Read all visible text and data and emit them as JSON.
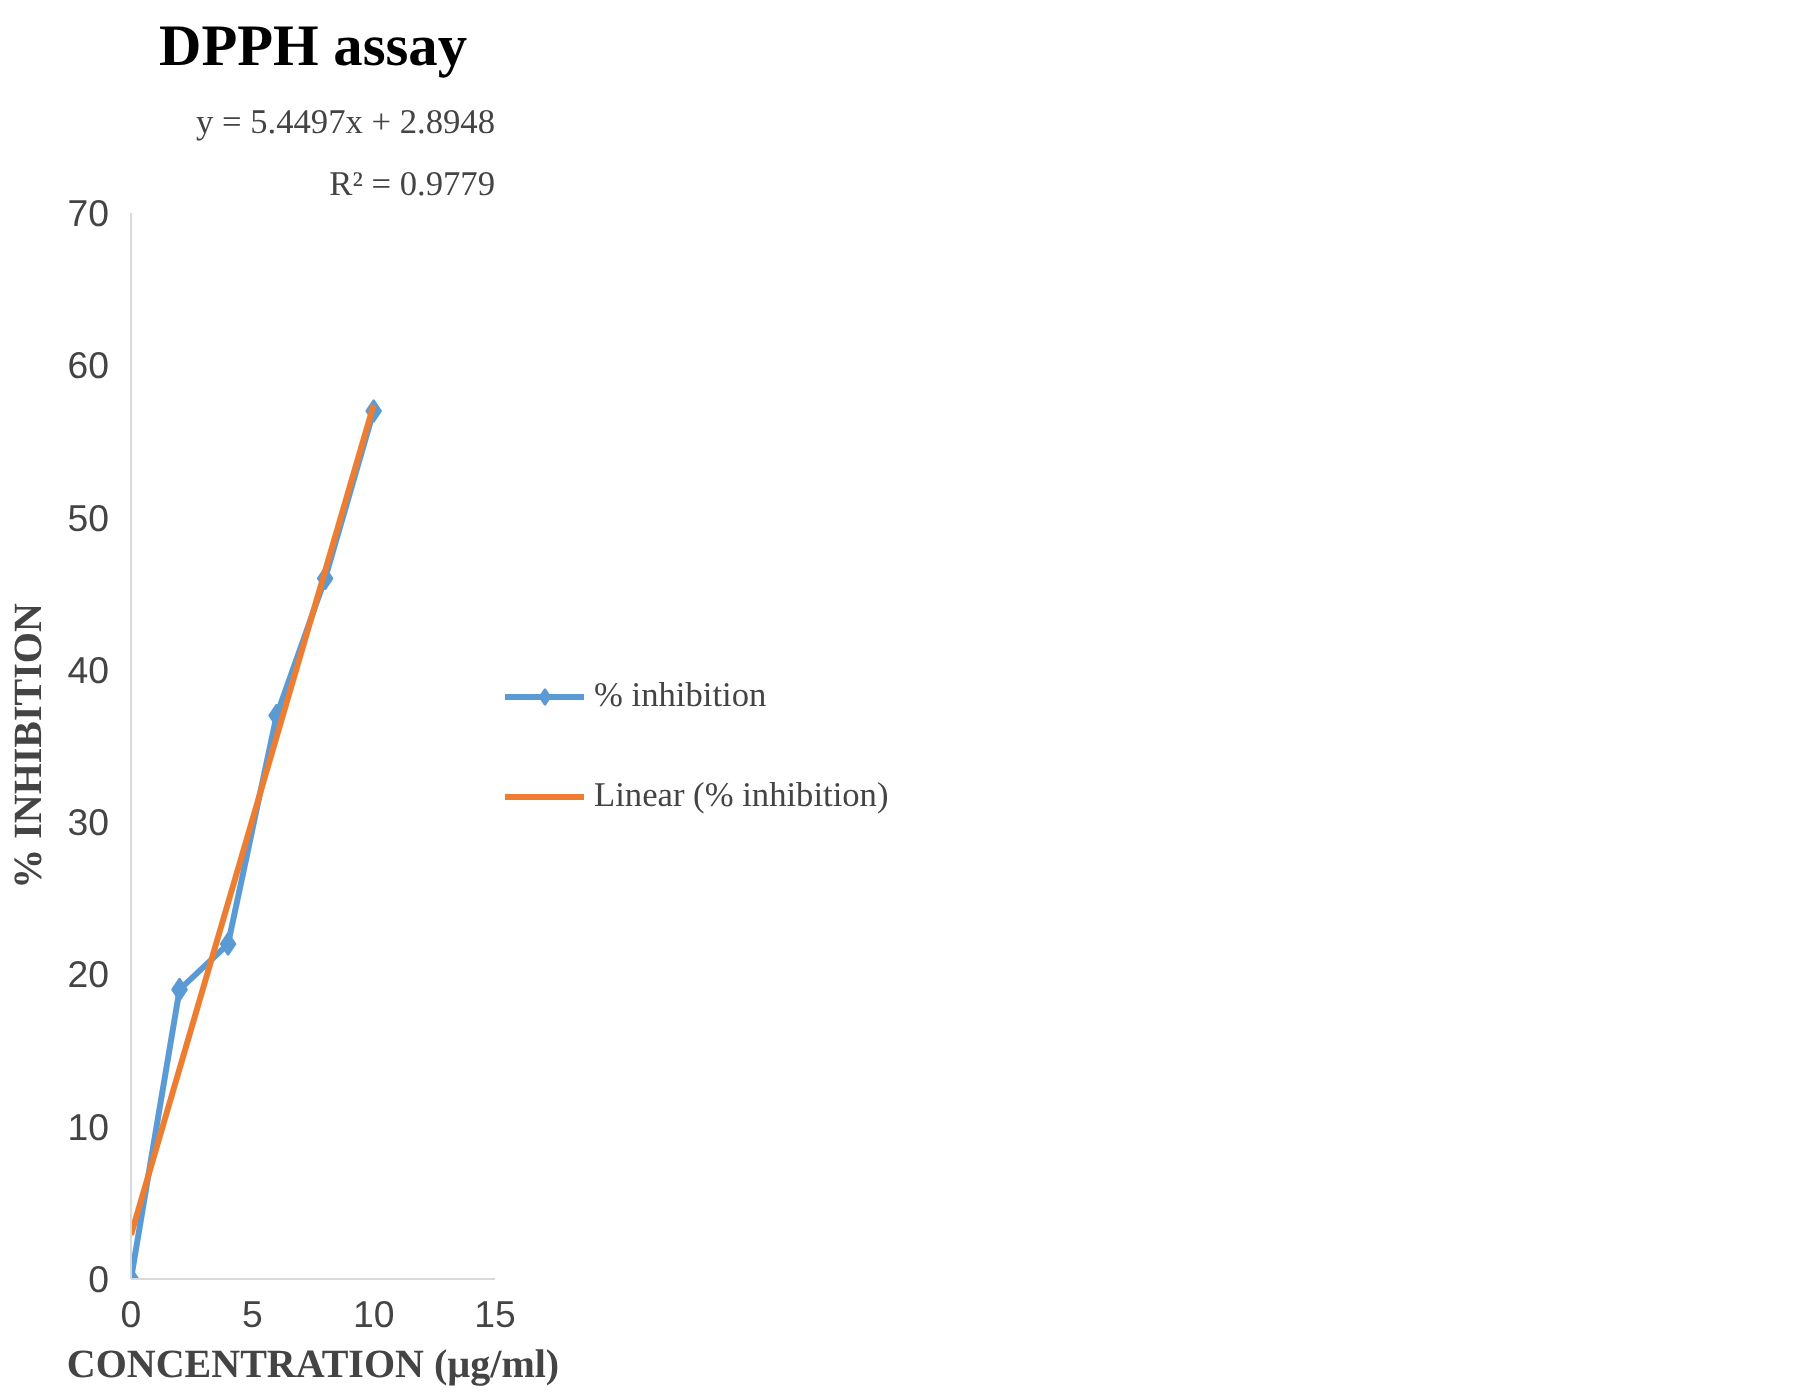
{
  "chart_data": {
    "type": "line",
    "title": "DPPH assay",
    "xlabel": "CONCENTRATION (µg/ml)",
    "ylabel": "% INHIBITION",
    "x": [
      0,
      2,
      4,
      6,
      8,
      10
    ],
    "series": [
      {
        "name": "% inhibition",
        "color": "#5b9bd5",
        "values": [
          0,
          19,
          22,
          37,
          46,
          57
        ],
        "marker": "diamond"
      },
      {
        "name": "Linear (% inhibition)",
        "type": "line",
        "color": "#ed7d31",
        "x": [
          0,
          10
        ],
        "values": [
          2.9,
          57.4
        ],
        "marker": "none"
      }
    ],
    "xlim": [
      0,
      15
    ],
    "xticks": [
      0,
      5,
      10,
      15
    ],
    "ylim": [
      0,
      70
    ],
    "yticks": [
      0,
      10,
      20,
      30,
      40,
      50,
      60,
      70
    ],
    "grid": false,
    "legend": "right",
    "annotations": [
      "y = 5.4497x + 2.8948",
      "R² = 0.9779"
    ]
  }
}
